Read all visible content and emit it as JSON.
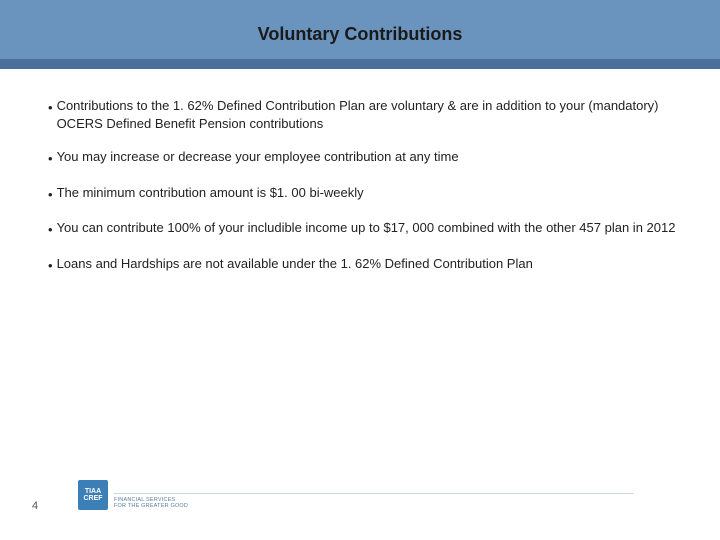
{
  "header": {
    "title": "Voluntary Contributions",
    "band_color": "#6a93bd",
    "accent_color": "#4a6f99",
    "title_color": "#1a1a1a",
    "title_fontsize": 18
  },
  "bullets": [
    "Contributions to the 1. 62% Defined Contribution Plan are voluntary & are in addition to your (mandatory) OCERS Defined Benefit Pension contributions",
    "You may increase or decrease your employee contribution at any time",
    "The minimum contribution amount is $1. 00 bi-weekly",
    "You can contribute 100% of your includible income up to $17, 000 combined with the other 457 plan in 2012",
    "Loans and Hardships are not available under the 1. 62% Defined Contribution Plan"
  ],
  "bullet_style": {
    "fontsize": 13,
    "color": "#222222",
    "dot": "•"
  },
  "footer": {
    "logo_line1": "TIAA",
    "logo_line2": "CREF",
    "logo_bg": "#3b7fb6",
    "tagline_line1": "FINANCIAL SERVICES",
    "tagline_line2": "FOR THE GREATER GOOD",
    "tagline_color": "#5a7fa0"
  },
  "page_number": "4"
}
